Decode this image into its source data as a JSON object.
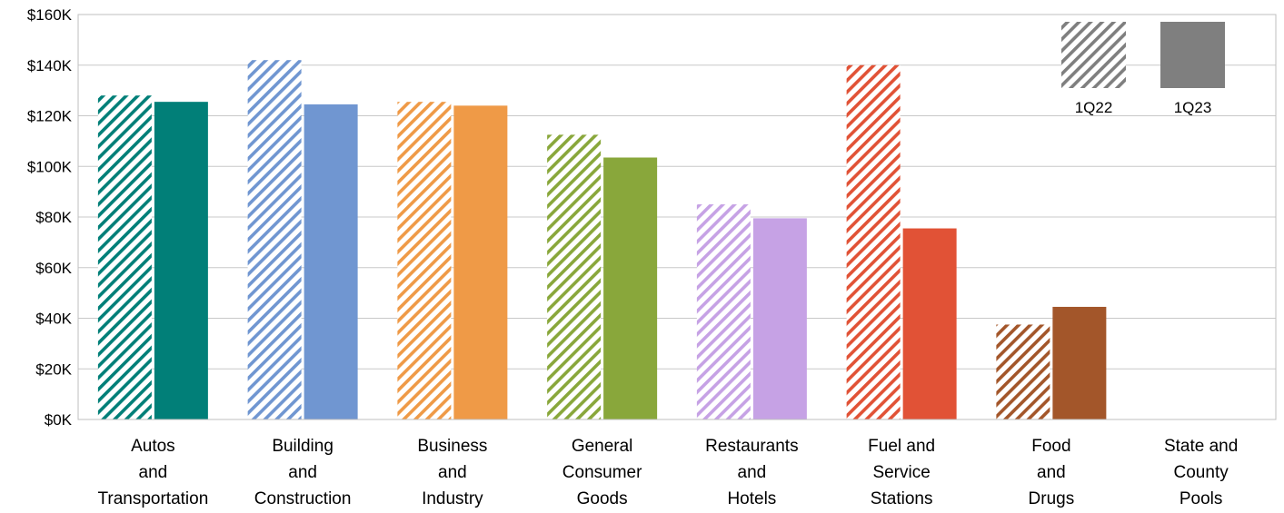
{
  "chart_data": {
    "type": "bar",
    "categories": [
      [
        "Autos",
        "and",
        "Transportation"
      ],
      [
        "Building",
        "and",
        "Construction"
      ],
      [
        "Business",
        "and",
        "Industry"
      ],
      [
        "General",
        "Consumer",
        "Goods"
      ],
      [
        "Restaurants",
        "and",
        "Hotels"
      ],
      [
        "Fuel and",
        "Service",
        "Stations"
      ],
      [
        "Food",
        "and",
        "Drugs"
      ],
      [
        "State and",
        "County",
        "Pools"
      ]
    ],
    "series": [
      {
        "name": "1Q22",
        "style": "hatched",
        "values": [
          128000,
          142000,
          125500,
          112500,
          85000,
          140000,
          37500,
          0
        ]
      },
      {
        "name": "1Q23",
        "style": "solid",
        "values": [
          125500,
          124500,
          124000,
          103500,
          79500,
          75500,
          44500,
          0
        ]
      }
    ],
    "category_colors": [
      "#017F78",
      "#7096D1",
      "#EF9A47",
      "#89A73B",
      "#C6A2E5",
      "#E15236",
      "#A3562A",
      "#7F7F7F"
    ],
    "legend_color": "#7F7F7F",
    "ylim": [
      0,
      160000
    ],
    "yticks": [
      {
        "value": 0,
        "label": "$0K"
      },
      {
        "value": 20000,
        "label": "$20K"
      },
      {
        "value": 40000,
        "label": "$40K"
      },
      {
        "value": 60000,
        "label": "$60K"
      },
      {
        "value": 80000,
        "label": "$80K"
      },
      {
        "value": 100000,
        "label": "$100K"
      },
      {
        "value": 120000,
        "label": "$120K"
      },
      {
        "value": 140000,
        "label": "$140K"
      },
      {
        "value": 160000,
        "label": "$160K"
      }
    ],
    "grid": true,
    "legend": {
      "placement": "top-right",
      "entries": [
        {
          "label": "1Q22",
          "style": "hatched"
        },
        {
          "label": "1Q23",
          "style": "solid"
        }
      ]
    }
  }
}
